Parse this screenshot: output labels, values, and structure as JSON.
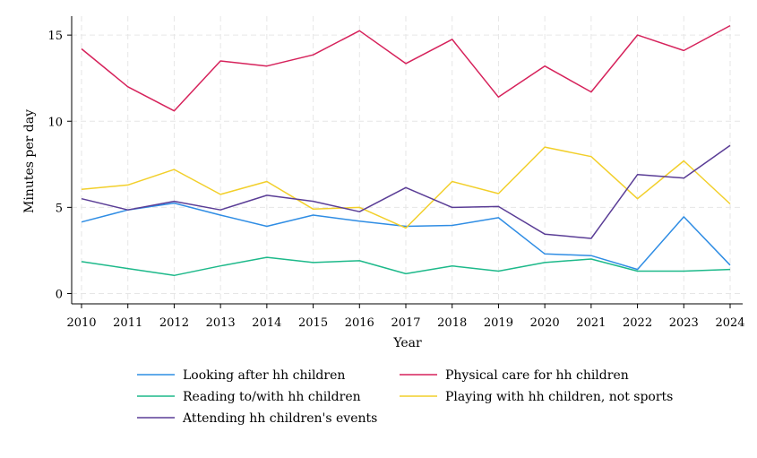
{
  "chart_data": {
    "type": "line",
    "title": "",
    "xlabel": "Year",
    "ylabel": "Minutes per day",
    "x": [
      2010,
      2011,
      2012,
      2013,
      2014,
      2015,
      2016,
      2017,
      2018,
      2019,
      2020,
      2021,
      2022,
      2023,
      2024
    ],
    "x_ticks": [
      "2010",
      "2011",
      "2012",
      "2013",
      "2014",
      "2015",
      "2016",
      "2017",
      "2018",
      "2019",
      "2020",
      "2021",
      "2022",
      "2023",
      "2024"
    ],
    "y_ticks": [
      "0",
      "5",
      "10",
      "15"
    ],
    "y_tick_values": [
      0,
      5,
      10,
      15
    ],
    "xlim": [
      2010,
      2024
    ],
    "ylim": [
      -0.6,
      16.1
    ],
    "grid": true,
    "legend_position": "bottom",
    "series": [
      {
        "name": "Looking after hh children",
        "color": "#2f8de4",
        "values": [
          4.15,
          4.85,
          5.25,
          4.55,
          3.9,
          4.55,
          4.2,
          3.9,
          3.95,
          4.4,
          2.3,
          2.2,
          1.4,
          4.45,
          1.65
        ]
      },
      {
        "name": "Physical care for hh children",
        "color": "#d6225b",
        "values": [
          14.2,
          12.0,
          10.6,
          13.5,
          13.2,
          13.85,
          15.25,
          13.35,
          14.75,
          11.4,
          13.2,
          11.7,
          15.0,
          14.1,
          15.55
        ]
      },
      {
        "name": "Reading to/with hh children",
        "color": "#1db98a",
        "values": [
          1.85,
          1.45,
          1.05,
          1.6,
          2.1,
          1.8,
          1.9,
          1.15,
          1.6,
          1.3,
          1.8,
          2.0,
          1.3,
          1.3,
          1.4
        ]
      },
      {
        "name": "Playing with hh children, not sports",
        "color": "#f2cf2a",
        "values": [
          6.05,
          6.3,
          7.2,
          5.75,
          6.5,
          4.9,
          5.0,
          3.8,
          6.5,
          5.8,
          8.5,
          7.95,
          5.5,
          7.7,
          5.2
        ]
      },
      {
        "name": "Attending hh children's events",
        "color": "#5a3d96",
        "values": [
          5.5,
          4.85,
          5.35,
          4.85,
          5.7,
          5.35,
          4.75,
          6.15,
          5.0,
          5.05,
          3.45,
          3.2,
          6.9,
          6.7,
          8.6
        ]
      }
    ]
  }
}
